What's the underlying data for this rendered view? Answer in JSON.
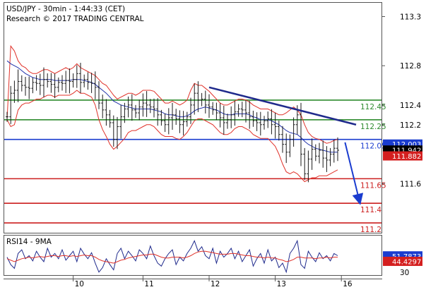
{
  "header": {
    "instrument": "USD/JPY - 30min - 1:44:33 (CET)",
    "copyright": "Research © 2017 TRADING CENTRAL"
  },
  "chart_data": [
    {
      "type": "line",
      "title": "USD/JPY - 30min",
      "ylim": [
        111.1,
        113.44
      ],
      "y_ticks": [
        {
          "value": 113.3,
          "label": "113.3"
        },
        {
          "value": 112.8,
          "label": "112.8"
        },
        {
          "value": 112.4,
          "label": "112.4"
        },
        {
          "value": 112.2,
          "label": "112.2"
        },
        {
          "value": 111.6,
          "label": "111.6"
        }
      ],
      "x_ticks": [
        {
          "day": "10",
          "index": 18
        },
        {
          "day": "11",
          "index": 37
        },
        {
          "day": "12",
          "index": 55
        },
        {
          "day": "13",
          "index": 73
        },
        {
          "day": "16",
          "index": 91
        }
      ],
      "price_path": [
        112.28,
        112.52,
        112.55,
        112.64,
        112.6,
        112.58,
        112.57,
        112.63,
        112.62,
        112.6,
        112.66,
        112.64,
        112.61,
        112.58,
        112.63,
        112.62,
        112.65,
        112.64,
        112.66,
        112.72,
        112.63,
        112.66,
        112.63,
        112.62,
        112.58,
        112.42,
        112.35,
        112.3,
        112.22,
        112.05,
        112.18,
        112.28,
        112.36,
        112.4,
        112.35,
        112.32,
        112.38,
        112.42,
        112.4,
        112.38,
        112.36,
        112.3,
        112.24,
        112.2,
        112.27,
        112.3,
        112.26,
        112.2,
        112.23,
        112.28,
        112.4,
        112.52,
        112.45,
        112.46,
        112.4,
        112.38,
        112.35,
        112.32,
        112.27,
        112.22,
        112.25,
        112.3,
        112.33,
        112.36,
        112.35,
        112.32,
        112.28,
        112.24,
        112.22,
        112.2,
        112.24,
        112.26,
        112.2,
        112.18,
        112.1,
        112.0,
        111.92,
        112.05,
        112.2,
        112.3,
        111.9,
        111.7,
        111.85,
        111.95,
        111.88,
        111.94,
        111.86,
        111.84,
        111.9,
        111.96,
        111.94
      ],
      "bb_upper": [
        112.25,
        113.0,
        112.95,
        112.85,
        112.8,
        112.78,
        112.74,
        112.72,
        112.72,
        112.74,
        112.76,
        112.76,
        112.74,
        112.72,
        112.74,
        112.76,
        112.78,
        112.76,
        112.78,
        112.82,
        112.78,
        112.76,
        112.74,
        112.72,
        112.7,
        112.66,
        112.62,
        112.6,
        112.55,
        112.5,
        112.46,
        112.48,
        112.5,
        112.52,
        112.52,
        112.5,
        112.52,
        112.55,
        112.55,
        112.55,
        112.54,
        112.5,
        112.46,
        112.42,
        112.42,
        112.44,
        112.42,
        112.4,
        112.42,
        112.45,
        112.55,
        112.62,
        112.6,
        112.6,
        112.57,
        112.54,
        112.5,
        112.46,
        112.42,
        112.4,
        112.4,
        112.42,
        112.44,
        112.46,
        112.46,
        112.45,
        112.43,
        112.4,
        112.38,
        112.36,
        112.36,
        112.36,
        112.34,
        112.32,
        112.3,
        112.3,
        112.32,
        112.35,
        112.38,
        112.35,
        112.3,
        112.2,
        112.12,
        112.08,
        112.06,
        112.05,
        112.03,
        112.01,
        112.02,
        112.04,
        112.05
      ],
      "bb_lower": [
        112.25,
        112.18,
        112.2,
        112.35,
        112.4,
        112.42,
        112.42,
        112.44,
        112.46,
        112.46,
        112.48,
        112.5,
        112.5,
        112.48,
        112.5,
        112.5,
        112.5,
        112.5,
        112.52,
        112.55,
        112.52,
        112.52,
        112.5,
        112.48,
        112.4,
        112.25,
        112.15,
        112.08,
        112.0,
        111.95,
        111.98,
        112.02,
        112.06,
        112.12,
        112.14,
        112.14,
        112.16,
        112.18,
        112.2,
        112.2,
        112.18,
        112.14,
        112.1,
        112.08,
        112.08,
        112.08,
        112.06,
        112.05,
        112.08,
        112.12,
        112.18,
        112.24,
        112.26,
        112.26,
        112.24,
        112.22,
        112.2,
        112.16,
        112.12,
        112.1,
        112.1,
        112.12,
        112.16,
        112.18,
        112.18,
        112.16,
        112.14,
        112.1,
        112.08,
        112.06,
        112.06,
        112.06,
        112.02,
        111.98,
        111.9,
        111.8,
        111.72,
        111.7,
        111.72,
        111.7,
        111.66,
        111.62,
        111.64,
        111.66,
        111.66,
        111.68,
        111.68,
        111.68,
        111.7,
        111.72,
        111.74
      ],
      "moving_average": [
        112.85,
        112.82,
        112.8,
        112.78,
        112.75,
        112.72,
        112.7,
        112.68,
        112.67,
        112.66,
        112.66,
        112.66,
        112.66,
        112.65,
        112.65,
        112.65,
        112.65,
        112.65,
        112.66,
        112.66,
        112.66,
        112.65,
        112.64,
        112.63,
        112.61,
        112.58,
        112.55,
        112.52,
        112.48,
        112.44,
        112.42,
        112.4,
        112.39,
        112.38,
        112.37,
        112.36,
        112.36,
        112.36,
        112.36,
        112.36,
        112.35,
        112.34,
        112.33,
        112.31,
        112.3,
        112.3,
        112.29,
        112.28,
        112.28,
        112.29,
        112.31,
        112.34,
        112.36,
        112.37,
        112.38,
        112.37,
        112.36,
        112.35,
        112.33,
        112.31,
        112.3,
        112.3,
        112.31,
        112.31,
        112.31,
        112.31,
        112.3,
        112.28,
        112.27,
        112.25,
        112.25,
        112.25,
        112.24,
        112.22,
        112.2,
        112.17,
        112.14,
        112.12,
        112.11,
        112.1,
        112.07,
        112.03,
        112.0,
        111.98,
        111.96,
        111.95,
        111.94,
        111.93,
        111.92,
        111.92,
        111.92
      ],
      "levels": [
        {
          "label": "112.45",
          "value": 112.45,
          "color": "#2e8b2e"
        },
        {
          "label": "112.25",
          "value": 112.25,
          "color": "#2e8b2e"
        },
        {
          "label": "112.05",
          "value": 112.05,
          "color": "#1a3ccf"
        },
        {
          "label": "111.65",
          "value": 111.65,
          "color": "#cc1f1f"
        },
        {
          "label": "111.4",
          "value": 111.4,
          "color": "#cc1f1f"
        },
        {
          "label": "111.2",
          "value": 111.2,
          "color": "#cc1f1f"
        }
      ],
      "trendline": {
        "start": {
          "index": 55,
          "value": 112.58
        },
        "end": {
          "index": 95,
          "value": 112.2
        },
        "color": "#1f2a8c"
      },
      "projection_arrow": {
        "start": {
          "index": 92,
          "value": 112.02
        },
        "end": {
          "index": 96,
          "value": 111.41
        },
        "color": "#1a3ccf"
      },
      "price_tags": [
        {
          "label": "112.003",
          "value": 112.003,
          "bg": "#1a3ccf",
          "fg": "#ffffff"
        },
        {
          "label": "111.942",
          "value": 111.942,
          "bg": "#000000",
          "fg": "#ffffff"
        },
        {
          "label": "111.882",
          "value": 111.882,
          "bg": "#d41f1f",
          "fg": "#ffffff"
        }
      ]
    },
    {
      "type": "line",
      "title": "RSI14 - 9MA",
      "ylim": [
        26,
        79
      ],
      "y_ticks": [
        {
          "value": 30,
          "label": "30"
        }
      ],
      "rsi": [
        50,
        40,
        35,
        55,
        60,
        48,
        52,
        45,
        58,
        50,
        44,
        62,
        50,
        55,
        48,
        60,
        46,
        52,
        58,
        44,
        62,
        54,
        48,
        56,
        42,
        30,
        36,
        48,
        40,
        33,
        55,
        62,
        48,
        58,
        52,
        45,
        60,
        55,
        48,
        65,
        52,
        42,
        38,
        48,
        55,
        60,
        40,
        50,
        45,
        55,
        62,
        72,
        58,
        64,
        52,
        48,
        62,
        42,
        58,
        50,
        55,
        62,
        48,
        58,
        44,
        52,
        60,
        38,
        48,
        55,
        42,
        60,
        45,
        50,
        36,
        42,
        30,
        55,
        62,
        72,
        40,
        35,
        58,
        50,
        44,
        56,
        48,
        52,
        45,
        55,
        52
      ],
      "rsi_ma": [
        48,
        46,
        44,
        46,
        48,
        49,
        50,
        49,
        50,
        51,
        50,
        51,
        52,
        52,
        51,
        52,
        52,
        51,
        52,
        51,
        52,
        53,
        52,
        52,
        50,
        47,
        45,
        44,
        43,
        42,
        44,
        46,
        47,
        49,
        50,
        51,
        52,
        53,
        53,
        54,
        54,
        52,
        50,
        49,
        49,
        50,
        50,
        50,
        49,
        50,
        52,
        55,
        57,
        58,
        58,
        57,
        56,
        55,
        54,
        54,
        54,
        55,
        55,
        54,
        53,
        52,
        52,
        51,
        50,
        50,
        49,
        50,
        49,
        49,
        47,
        46,
        44,
        45,
        47,
        50,
        50,
        49,
        49,
        49,
        48,
        49,
        49,
        50,
        49,
        50,
        50
      ],
      "tags": [
        {
          "label": "51.7873",
          "value": 51.7873,
          "bg": "#1a3ccf",
          "fg": "#ffffff"
        },
        {
          "label": "44.4297",
          "value": 44.4297,
          "bg": "#d41f1f",
          "fg": "#ffffff"
        }
      ]
    }
  ]
}
